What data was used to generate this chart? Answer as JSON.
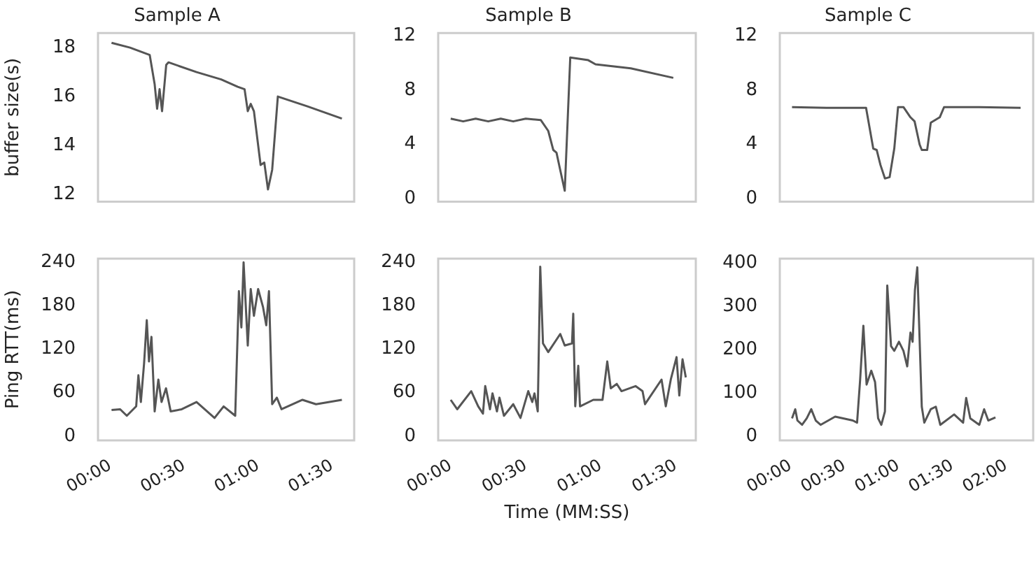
{
  "chart_data": [
    {
      "type": "line",
      "title": "Sample A",
      "ylabel": "buffer size(s)",
      "color": "#555555",
      "tick_labels": "y",
      "xlim": [
        -5,
        99
      ],
      "ylim": [
        11.7,
        18.6
      ],
      "yticks": [
        12,
        14,
        16,
        18
      ],
      "x": [
        0.5,
        8,
        16,
        18,
        19,
        20,
        21,
        22.7,
        23.6,
        35,
        45,
        51.7,
        54.5,
        55.8,
        57,
        58.3,
        61,
        62.5,
        64,
        65.7,
        68,
        80,
        94
      ],
      "values": [
        18.2,
        18.0,
        17.7,
        16.5,
        15.5,
        16.3,
        15.4,
        17.3,
        17.4,
        17.0,
        16.7,
        16.4,
        16.3,
        15.4,
        15.7,
        15.4,
        13.2,
        13.3,
        12.2,
        13.0,
        16.0,
        15.6,
        15.1
      ]
    },
    {
      "type": "line",
      "title": "Sample B",
      "color": "#555555",
      "tick_labels": "y",
      "xlim": [
        -5,
        98
      ],
      "ylim": [
        -0.2,
        12.2
      ],
      "yticks": [
        0,
        4,
        8,
        12
      ],
      "x": [
        0,
        5,
        10,
        15,
        20,
        25,
        30,
        36,
        39,
        41,
        42.3,
        43.7,
        45.6,
        47.8,
        55,
        57.9,
        72,
        89
      ],
      "values": [
        5.9,
        5.7,
        5.9,
        5.7,
        5.9,
        5.7,
        5.9,
        5.8,
        5.0,
        3.6,
        3.4,
        2.2,
        0.6,
        10.4,
        10.2,
        9.9,
        9.6,
        8.9
      ]
    },
    {
      "type": "line",
      "title": "Sample C",
      "color": "#555555",
      "tick_labels": "y",
      "xlim": [
        -6,
        135
      ],
      "ylim": [
        -0.2,
        12.2
      ],
      "yticks": [
        0,
        4,
        8,
        12
      ],
      "x": [
        0.8,
        20,
        42,
        46,
        47.9,
        50,
        52.5,
        55.1,
        57.7,
        59.8,
        62.8,
        66.7,
        69,
        71.8,
        73,
        76,
        78,
        83,
        85.4,
        105,
        128
      ],
      "values": [
        6.75,
        6.7,
        6.7,
        3.7,
        3.6,
        2.5,
        1.5,
        1.6,
        3.7,
        6.75,
        6.75,
        6.0,
        5.7,
        4.0,
        3.6,
        3.6,
        5.6,
        6.0,
        6.75,
        6.75,
        6.7
      ]
    },
    {
      "type": "line",
      "ylabel": "Ping RTT(ms)",
      "color": "#555555",
      "xlim": [
        -5,
        99
      ],
      "ylim": [
        -6,
        245
      ],
      "yticks": [
        0,
        60,
        120,
        180,
        240
      ],
      "xticks": [
        {
          "value": 0,
          "label": "00:00"
        },
        {
          "value": 30,
          "label": "00:30"
        },
        {
          "value": 60,
          "label": "01:00"
        },
        {
          "value": 90,
          "label": "01:30"
        }
      ],
      "x": [
        0.5,
        4,
        6.7,
        10.5,
        11.4,
        12.4,
        13.7,
        14.8,
        15.7,
        16.7,
        18,
        19.5,
        20.8,
        22.6,
        24.5,
        29,
        35,
        42.3,
        46,
        50.7,
        52.2,
        53.2,
        54.1,
        55.8,
        57,
        58.3,
        60,
        62,
        63.3,
        64.4,
        65.7,
        67.6,
        69.5,
        78,
        83.5,
        94
      ],
      "values": [
        36,
        37,
        28,
        41,
        84,
        47,
        100,
        160,
        103,
        137,
        34,
        78,
        47,
        66,
        34,
        37,
        47,
        25,
        41,
        28,
        200,
        150,
        240,
        125,
        203,
        166,
        203,
        178,
        153,
        200,
        44,
        53,
        37,
        50,
        44,
        50
      ]
    },
    {
      "type": "line",
      "xlabel": "Time (MM:SS)",
      "color": "#555555",
      "xlim": [
        -5,
        98
      ],
      "ylim": [
        -6,
        245
      ],
      "yticks": [
        0,
        60,
        120,
        180,
        240
      ],
      "xticks": [
        {
          "value": 0,
          "label": "00:00"
        },
        {
          "value": 30,
          "label": "00:30"
        },
        {
          "value": 60,
          "label": "01:00"
        },
        {
          "value": 90,
          "label": "01:30"
        }
      ],
      "x": [
        0,
        2.6,
        8.2,
        11,
        12.9,
        13.8,
        15.7,
        16.7,
        18.5,
        19.5,
        21.3,
        25,
        27.9,
        31,
        32.6,
        33.5,
        34.8,
        35.8,
        36.9,
        39,
        43.8,
        45.6,
        48.5,
        49,
        49.8,
        51,
        51.7,
        57,
        60.7,
        62.6,
        64,
        66.4,
        68.3,
        73.9,
        76.7,
        77.7,
        84.3,
        86,
        88,
        90.3,
        91.4,
        92.7,
        94
      ],
      "values": [
        50,
        37,
        62,
        41,
        31,
        69,
        37,
        59,
        34,
        53,
        28,
        44,
        25,
        62,
        47,
        59,
        34,
        234,
        128,
        116,
        141,
        125,
        128,
        169,
        41,
        97,
        41,
        50,
        50,
        103,
        66,
        72,
        62,
        69,
        62,
        44,
        78,
        41,
        78,
        109,
        56,
        106,
        81
      ]
    },
    {
      "type": "line",
      "color": "#555555",
      "xlim": [
        -6,
        135
      ],
      "ylim": [
        -10,
        410
      ],
      "yticks": [
        0,
        100,
        200,
        300,
        400
      ],
      "xticks": [
        {
          "value": 0,
          "label": "00:00"
        },
        {
          "value": 30,
          "label": "00:30"
        },
        {
          "value": 60,
          "label": "01:00"
        },
        {
          "value": 90,
          "label": "01:30"
        },
        {
          "value": 120,
          "label": "02:00"
        }
      ],
      "x": [
        0.8,
        2.6,
        3.8,
        6.4,
        9,
        11.5,
        14,
        16.7,
        24.8,
        34.6,
        37,
        38.7,
        40.5,
        42.3,
        44.9,
        47,
        48.7,
        50.5,
        52.5,
        53.8,
        55.9,
        57.7,
        60.3,
        62.8,
        64.9,
        66.7,
        67.9,
        69.2,
        70.5,
        73,
        74.4,
        78,
        80.8,
        83.3,
        91,
        96,
        97.7,
        100,
        105,
        107.7,
        110,
        114
      ],
      "values": [
        41,
        62,
        36,
        26,
        41,
        62,
        36,
        26,
        45,
        36,
        31,
        130,
        255,
        119,
        151,
        125,
        41,
        26,
        57,
        348,
        208,
        197,
        218,
        197,
        161,
        239,
        218,
        338,
        390,
        68,
        31,
        62,
        68,
        26,
        50,
        31,
        88,
        41,
        26,
        62,
        36,
        43
      ]
    }
  ]
}
